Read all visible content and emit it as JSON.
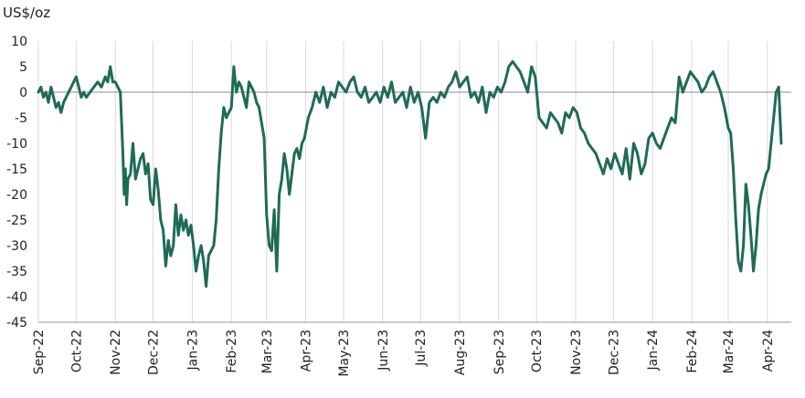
{
  "chart_data": {
    "type": "line",
    "ylabel": "US$/oz",
    "ylim": [
      -45,
      10
    ],
    "yticks": [
      10,
      5,
      0,
      -5,
      -10,
      -15,
      -20,
      -25,
      -30,
      -35,
      -40,
      -45
    ],
    "xlim": [
      "2022-09-01",
      "2024-04-20"
    ],
    "xticks": [
      {
        "label": "Sep-22",
        "date": "2022-09-01"
      },
      {
        "label": "Oct-22",
        "date": "2022-10-01"
      },
      {
        "label": "Nov-22",
        "date": "2022-11-01"
      },
      {
        "label": "Dec-22",
        "date": "2022-12-01"
      },
      {
        "label": "Jan-23",
        "date": "2023-01-01"
      },
      {
        "label": "Feb-23",
        "date": "2023-02-01"
      },
      {
        "label": "Mar-23",
        "date": "2023-03-01"
      },
      {
        "label": "Apr-23",
        "date": "2023-04-01"
      },
      {
        "label": "May-23",
        "date": "2023-05-01"
      },
      {
        "label": "Jun-23",
        "date": "2023-06-01"
      },
      {
        "label": "Jul-23",
        "date": "2023-07-01"
      },
      {
        "label": "Aug-23",
        "date": "2023-08-01"
      },
      {
        "label": "Sep-23",
        "date": "2023-09-01"
      },
      {
        "label": "Oct-23",
        "date": "2023-10-01"
      },
      {
        "label": "Nov-23",
        "date": "2023-11-01"
      },
      {
        "label": "Dec-23",
        "date": "2023-12-01"
      },
      {
        "label": "Jan-24",
        "date": "2024-01-01"
      },
      {
        "label": "Feb-24",
        "date": "2024-02-01"
      },
      {
        "label": "Mar-24",
        "date": "2024-03-01"
      },
      {
        "label": "Apr-24",
        "date": "2024-04-01"
      }
    ],
    "grid": "vertical",
    "zero_line": true,
    "line_color": "#1f6b57",
    "series": [
      {
        "x": [
          "2022-09-01",
          "2022-09-03",
          "2022-09-05",
          "2022-09-07",
          "2022-09-09",
          "2022-09-11",
          "2022-09-13",
          "2022-09-15",
          "2022-09-17",
          "2022-09-19",
          "2022-09-21",
          "2022-09-23",
          "2022-09-25",
          "2022-09-27",
          "2022-09-29",
          "2022-10-01",
          "2022-10-03",
          "2022-10-05",
          "2022-10-07",
          "2022-10-09",
          "2022-10-12",
          "2022-10-15",
          "2022-10-18",
          "2022-10-21",
          "2022-10-24",
          "2022-10-26",
          "2022-10-28",
          "2022-10-30",
          "2022-11-01",
          "2022-11-03",
          "2022-11-05",
          "2022-11-07",
          "2022-11-08",
          "2022-11-09",
          "2022-11-10",
          "2022-11-11",
          "2022-11-13",
          "2022-11-15",
          "2022-11-17",
          "2022-11-19",
          "2022-11-21",
          "2022-11-23",
          "2022-11-25",
          "2022-11-27",
          "2022-11-29",
          "2022-12-01",
          "2022-12-03",
          "2022-12-05",
          "2022-12-07",
          "2022-12-09",
          "2022-12-11",
          "2022-12-13",
          "2022-12-15",
          "2022-12-17",
          "2022-12-19",
          "2022-12-21",
          "2022-12-23",
          "2022-12-25",
          "2022-12-27",
          "2022-12-29",
          "2022-12-31",
          "2023-01-02",
          "2023-01-04",
          "2023-01-06",
          "2023-01-08",
          "2023-01-10",
          "2023-01-12",
          "2023-01-14",
          "2023-01-16",
          "2023-01-18",
          "2023-01-20",
          "2023-01-22",
          "2023-01-24",
          "2023-01-26",
          "2023-01-28",
          "2023-01-30",
          "2023-02-01",
          "2023-02-03",
          "2023-02-05",
          "2023-02-07",
          "2023-02-09",
          "2023-02-11",
          "2023-02-13",
          "2023-02-15",
          "2023-02-17",
          "2023-02-19",
          "2023-02-21",
          "2023-02-23",
          "2023-02-25",
          "2023-02-27",
          "2023-03-01",
          "2023-03-03",
          "2023-03-05",
          "2023-03-07",
          "2023-03-09",
          "2023-03-11",
          "2023-03-13",
          "2023-03-15",
          "2023-03-17",
          "2023-03-19",
          "2023-03-21",
          "2023-03-23",
          "2023-03-25",
          "2023-03-27",
          "2023-03-29",
          "2023-03-31",
          "2023-04-03",
          "2023-04-06",
          "2023-04-09",
          "2023-04-12",
          "2023-04-15",
          "2023-04-18",
          "2023-04-21",
          "2023-04-24",
          "2023-04-27",
          "2023-04-30",
          "2023-05-03",
          "2023-05-06",
          "2023-05-09",
          "2023-05-12",
          "2023-05-15",
          "2023-05-18",
          "2023-05-21",
          "2023-05-24",
          "2023-05-27",
          "2023-05-30",
          "2023-06-02",
          "2023-06-05",
          "2023-06-08",
          "2023-06-11",
          "2023-06-14",
          "2023-06-17",
          "2023-06-20",
          "2023-06-23",
          "2023-06-26",
          "2023-06-29",
          "2023-07-02",
          "2023-07-05",
          "2023-07-08",
          "2023-07-11",
          "2023-07-14",
          "2023-07-17",
          "2023-07-20",
          "2023-07-23",
          "2023-07-26",
          "2023-07-29",
          "2023-08-01",
          "2023-08-04",
          "2023-08-07",
          "2023-08-10",
          "2023-08-13",
          "2023-08-16",
          "2023-08-19",
          "2023-08-22",
          "2023-08-25",
          "2023-08-28",
          "2023-08-31",
          "2023-09-03",
          "2023-09-06",
          "2023-09-09",
          "2023-09-12",
          "2023-09-15",
          "2023-09-18",
          "2023-09-21",
          "2023-09-24",
          "2023-09-27",
          "2023-09-30",
          "2023-10-03",
          "2023-10-06",
          "2023-10-09",
          "2023-10-12",
          "2023-10-15",
          "2023-10-18",
          "2023-10-21",
          "2023-10-24",
          "2023-10-27",
          "2023-10-30",
          "2023-11-02",
          "2023-11-05",
          "2023-11-08",
          "2023-11-11",
          "2023-11-14",
          "2023-11-17",
          "2023-11-20",
          "2023-11-23",
          "2023-11-26",
          "2023-11-29",
          "2023-12-02",
          "2023-12-05",
          "2023-12-08",
          "2023-12-11",
          "2023-12-14",
          "2023-12-17",
          "2023-12-20",
          "2023-12-23",
          "2023-12-26",
          "2023-12-29",
          "2024-01-01",
          "2024-01-04",
          "2024-01-07",
          "2024-01-10",
          "2024-01-13",
          "2024-01-16",
          "2024-01-19",
          "2024-01-22",
          "2024-01-25",
          "2024-01-28",
          "2024-01-31",
          "2024-02-03",
          "2024-02-06",
          "2024-02-09",
          "2024-02-12",
          "2024-02-15",
          "2024-02-18",
          "2024-02-21",
          "2024-02-24",
          "2024-02-27",
          "2024-03-01",
          "2024-03-03",
          "2024-03-05",
          "2024-03-07",
          "2024-03-09",
          "2024-03-11",
          "2024-03-13",
          "2024-03-15",
          "2024-03-17",
          "2024-03-19",
          "2024-03-21",
          "2024-03-23",
          "2024-03-25",
          "2024-03-27",
          "2024-03-29",
          "2024-03-31",
          "2024-04-02",
          "2024-04-04",
          "2024-04-06",
          "2024-04-08",
          "2024-04-10",
          "2024-04-12"
        ],
        "values": [
          0,
          1,
          -1,
          0,
          -2,
          1,
          -1,
          -3,
          -2,
          -4,
          -2,
          -1,
          0,
          1,
          2,
          3,
          1,
          -1,
          0,
          -1,
          0,
          1,
          2,
          1,
          3,
          2,
          5,
          2,
          2,
          1,
          0,
          -12,
          -20,
          -15,
          -22,
          -17,
          -16,
          -10,
          -17,
          -15,
          -13,
          -12,
          -16,
          -14,
          -21,
          -22,
          -15,
          -19,
          -25,
          -27,
          -34,
          -29,
          -32,
          -30,
          -22,
          -28,
          -24,
          -27,
          -25,
          -28,
          -26,
          -30,
          -35,
          -32,
          -30,
          -33,
          -38,
          -32,
          -31,
          -30,
          -25,
          -15,
          -8,
          -3,
          -5,
          -4,
          -3,
          5,
          0,
          2,
          1,
          -1,
          -3,
          2,
          1,
          0,
          -2,
          -3,
          -6,
          -9,
          -24,
          -30,
          -31,
          -23,
          -35,
          -20,
          -17,
          -12,
          -15,
          -20,
          -16,
          -12,
          -11,
          -13,
          -10,
          -9,
          -5,
          -3,
          0,
          -2,
          1,
          -3,
          0,
          -1,
          2,
          1,
          0,
          2,
          3,
          0,
          -1,
          1,
          -2,
          -1,
          0,
          -2,
          1,
          -1,
          2,
          -2,
          -1,
          0,
          -3,
          1,
          -2,
          0,
          -3,
          -9,
          -2,
          -1,
          -2,
          0,
          -1,
          1,
          2,
          4,
          1,
          2,
          3,
          -1,
          0,
          -2,
          1,
          -4,
          0,
          -1,
          1,
          0,
          2,
          5,
          6,
          5,
          4,
          2,
          0,
          5,
          3,
          -5,
          -6,
          -7,
          -4,
          -5,
          -6,
          -8,
          -4,
          -5,
          -3,
          -4,
          -7,
          -8,
          -10,
          -11,
          -12,
          -14,
          -16,
          -13,
          -15,
          -12,
          -14,
          -16,
          -11,
          -17,
          -10,
          -12,
          -16,
          -14,
          -9,
          -8,
          -10,
          -11,
          -9,
          -7,
          -5,
          -6,
          3,
          0,
          2,
          4,
          3,
          2,
          0,
          1,
          3,
          4,
          2,
          0,
          -3,
          -7,
          -8,
          -15,
          -25,
          -33,
          -35,
          -30,
          -18,
          -22,
          -28,
          -35,
          -30,
          -23,
          -20,
          -18,
          -16,
          -15,
          -10,
          -5,
          0,
          1,
          -10
        ]
      }
    ]
  }
}
